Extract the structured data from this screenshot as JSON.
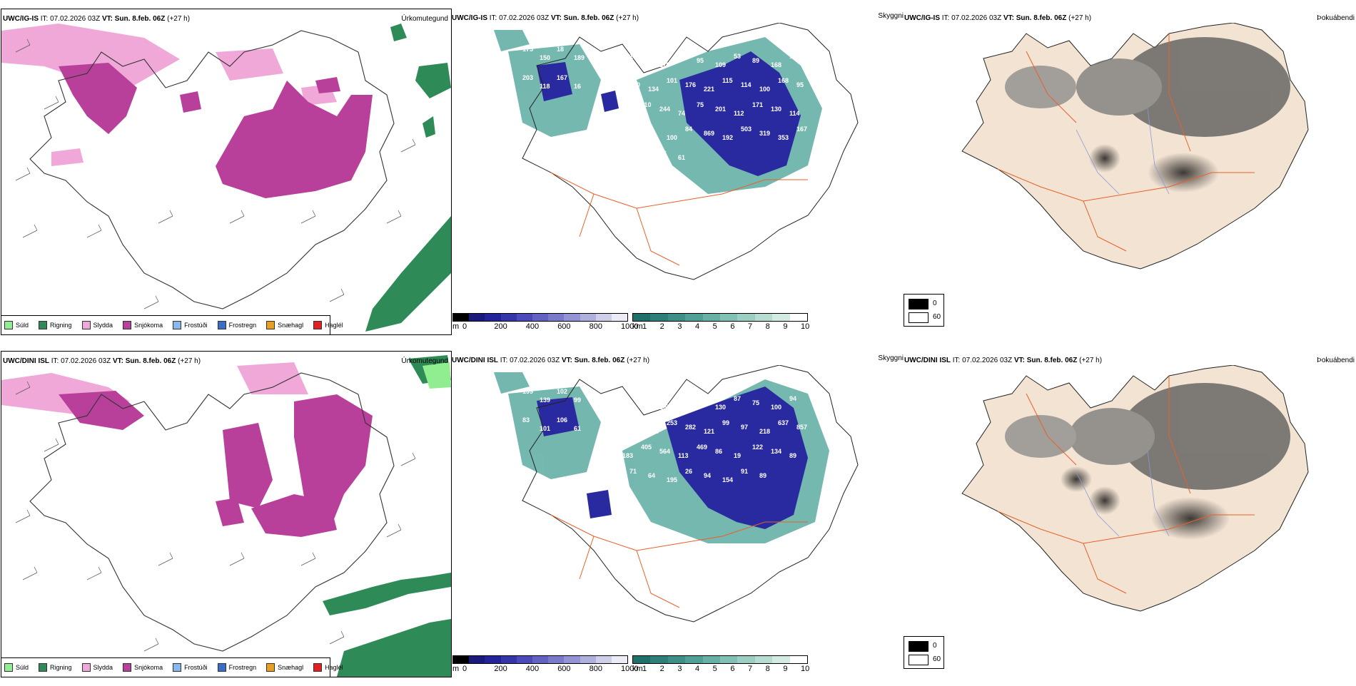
{
  "panels": {
    "top": {
      "type_panel": {
        "model": "UWC/IG-IS",
        "it": "IT: 07.02.2026 03Z",
        "vt_label": "VT:",
        "vt": "Sun. 8.feb. 06Z",
        "lead": "(+27 h)",
        "product": "Úrkomutegund"
      },
      "cloud_panel": {
        "model": "UWC/IG-IS",
        "it": "IT: 07.02.2026 03Z",
        "vt_label": "VT:",
        "vt": "Sun. 8.feb. 06Z",
        "lead": "(+27 h)",
        "product": "Skyggni"
      },
      "fog_panel": {
        "model": "UWC/IG-IS",
        "it": "IT: 07.02.2026 03Z",
        "vt_label": "VT:",
        "vt": "Sun. 8.feb. 06Z",
        "lead": "(+27 h)",
        "product": "Þokuábendi"
      },
      "visibility_labels": [
        "175",
        "150",
        "18",
        "189",
        "203",
        "118",
        "167",
        "16",
        "121",
        "40",
        "119",
        "78",
        "95",
        "109",
        "53",
        "89",
        "168",
        "128",
        "160",
        "134",
        "101",
        "176",
        "221",
        "115",
        "114",
        "100",
        "168",
        "95",
        "131",
        "110",
        "244",
        "74",
        "75",
        "201",
        "112",
        "171",
        "130",
        "114",
        "266",
        "97",
        "100",
        "84",
        "869",
        "192",
        "503",
        "319",
        "353",
        "167",
        "144",
        "111",
        "16",
        "61"
      ]
    },
    "bottom": {
      "type_panel": {
        "model": "UWC/DINI ISL",
        "it": "IT: 07.02.2026 03Z",
        "vt_label": "VT:",
        "vt": "Sun. 8.feb. 06Z",
        "lead": "(+27 h)",
        "product": "Úrkomutegund"
      },
      "cloud_panel": {
        "model": "UWC/DINI ISL",
        "it": "IT: 07.02.2026 03Z",
        "vt_label": "VT:",
        "vt": "Sun. 8.feb. 06Z",
        "lead": "(+27 h)",
        "product": "Skyggni"
      },
      "fog_panel": {
        "model": "UWC/DINI ISL",
        "it": "IT: 07.02.2026 03Z",
        "vt_label": "VT:",
        "vt": "Sun. 8.feb. 06Z",
        "lead": "(+27 h)",
        "product": "Þokuábendi"
      },
      "visibility_labels": [
        "199",
        "139",
        "102",
        "99",
        "83",
        "101",
        "106",
        "61",
        "89",
        "151",
        "107",
        "86",
        "140",
        "130",
        "87",
        "75",
        "100",
        "94",
        "88",
        "104",
        "253",
        "282",
        "121",
        "99",
        "97",
        "218",
        "637",
        "857",
        "183",
        "405",
        "564",
        "113",
        "469",
        "86",
        "19",
        "122",
        "134",
        "89",
        "71",
        "64",
        "195",
        "26",
        "94",
        "154",
        "91",
        "89"
      ]
    }
  },
  "precip_legend": [
    {
      "label": "Súld",
      "color": "#90ee90"
    },
    {
      "label": "Rigning",
      "color": "#2e8b57"
    },
    {
      "label": "Slydda",
      "color": "#f0a8d8"
    },
    {
      "label": "Snjókoma",
      "color": "#b8409a"
    },
    {
      "label": "Frostúði",
      "color": "#87b8f0"
    },
    {
      "label": "Frostregn",
      "color": "#3a6fc4"
    },
    {
      "label": "Snæhagl",
      "color": "#e8a020"
    },
    {
      "label": "Haglél",
      "color": "#e02020"
    }
  ],
  "ceiling_bar": {
    "unit": "m",
    "ticks": [
      "0",
      "200",
      "400",
      "600",
      "800",
      "1000"
    ],
    "colors": [
      "#000000",
      "#1a1a7a",
      "#23239a",
      "#3535aa",
      "#4a4ab8",
      "#6262c2",
      "#7a7acb",
      "#9494d4",
      "#b0b0df",
      "#cfcfea",
      "#ececf6"
    ]
  },
  "visibility_bar": {
    "unit": "km",
    "ticks": [
      "1",
      "2",
      "3",
      "4",
      "5",
      "6",
      "7",
      "8",
      "9",
      "10"
    ],
    "colors": [
      "#1f6f6a",
      "#2e7f7a",
      "#3d8f88",
      "#50a097",
      "#66b0a6",
      "#80c0b5",
      "#9bcfc4",
      "#b7ddd3",
      "#d3ebe3",
      "#ffffff"
    ]
  },
  "fog_legend": {
    "v0": "0",
    "v1": "60",
    "c0": "#000000",
    "c1": "#ffffff"
  },
  "colors": {
    "land": "#f2e3d3",
    "roads": "#e8602a",
    "rivers": "#8899dd",
    "snow_precip": "#b8409a",
    "sleet": "#f0a8d8",
    "rain": "#2e8b57",
    "cloud_blue": "#2a2aa0",
    "cloud_teal": "#4a9a95"
  }
}
